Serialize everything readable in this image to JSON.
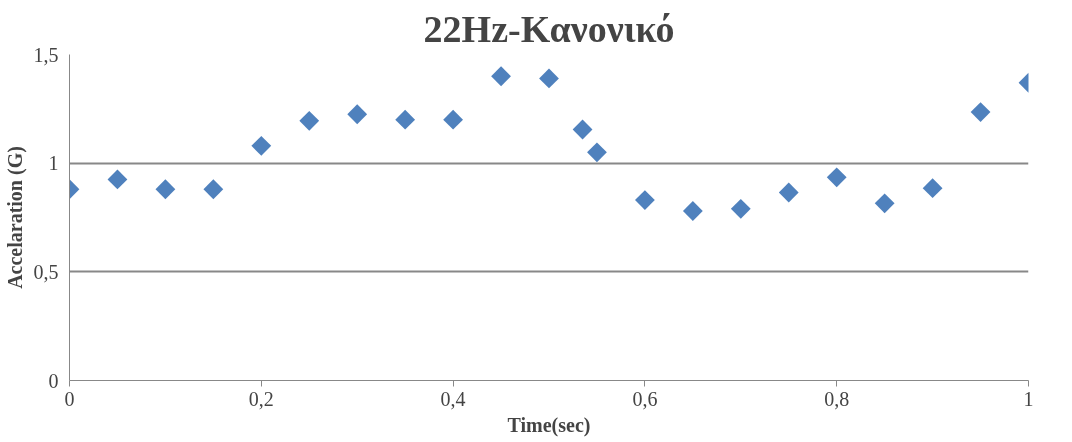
{
  "chart_data": {
    "type": "scatter",
    "title": "22Hz-Κανονικό",
    "xlabel": "Time(sec)",
    "ylabel": "Accelaration (G)",
    "x": [
      0,
      0.05,
      0.1,
      0.15,
      0.2,
      0.25,
      0.3,
      0.35,
      0.4,
      0.45,
      0.5,
      0.535,
      0.55,
      0.6,
      0.65,
      0.7,
      0.75,
      0.8,
      0.85,
      0.9,
      0.95,
      1.0
    ],
    "series": [
      {
        "color": "#4f81bd",
        "values": [
          0.88,
          0.925,
          0.88,
          0.88,
          1.08,
          1.195,
          1.225,
          1.2,
          1.2,
          1.4,
          1.39,
          1.155,
          1.05,
          0.83,
          0.78,
          0.79,
          0.865,
          0.935,
          0.815,
          0.885,
          1.235,
          1.37
        ]
      }
    ],
    "xlim": [
      0,
      1
    ],
    "ylim": [
      0,
      1.5
    ],
    "xticks": [
      {
        "value": 0,
        "label": "0"
      },
      {
        "value": 0.2,
        "label": "0,2"
      },
      {
        "value": 0.4,
        "label": "0,4"
      },
      {
        "value": 0.6,
        "label": "0,6"
      },
      {
        "value": 0.8,
        "label": "0,8"
      },
      {
        "value": 1,
        "label": "1"
      }
    ],
    "yticks": [
      {
        "value": 0,
        "label": "0"
      },
      {
        "value": 0.5,
        "label": "0,5"
      },
      {
        "value": 1,
        "label": "1"
      },
      {
        "value": 1.5,
        "label": "1,5"
      }
    ],
    "grid": "y",
    "marker": "diamond"
  }
}
